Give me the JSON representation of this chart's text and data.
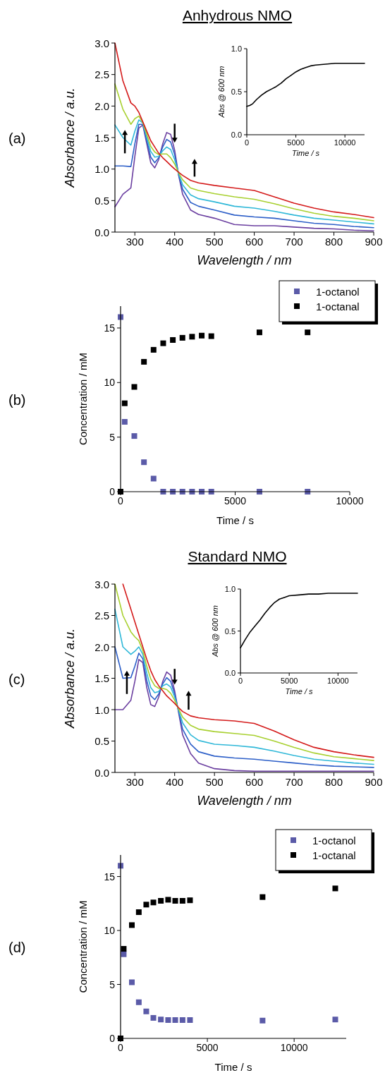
{
  "chart_data": [
    {
      "type": "line",
      "title": "Anhydrous NMO",
      "xlabel": "Wavelength / nm",
      "ylabel": "Absorbance / a.u.",
      "annotations": [
        "(a)"
      ],
      "xlim": [
        250,
        900
      ],
      "xticks": [
        300,
        400,
        500,
        600,
        700,
        800,
        900
      ],
      "ylim": [
        0,
        3
      ],
      "yticks": [
        {
          "value": 0,
          "label": "0.0"
        },
        0.5,
        {
          "value": 1,
          "label": "1.0"
        },
        1.5,
        {
          "value": 2,
          "label": "2.0"
        },
        2.5,
        {
          "value": 3,
          "label": "3.0"
        }
      ],
      "x": [
        250,
        270,
        290,
        300,
        310,
        320,
        330,
        340,
        350,
        360,
        370,
        380,
        390,
        400,
        410,
        420,
        440,
        460,
        500,
        550,
        600,
        650,
        700,
        750,
        800,
        850,
        900
      ],
      "series": [
        {
          "color": "#6b3fa0",
          "values": [
            0.4,
            0.6,
            0.7,
            1.2,
            1.65,
            1.7,
            1.4,
            1.1,
            1.02,
            1.15,
            1.4,
            1.58,
            1.55,
            1.3,
            0.9,
            0.6,
            0.35,
            0.28,
            0.22,
            0.12,
            0.1,
            0.1,
            0.08,
            0.06,
            0.05,
            0.03,
            0.02
          ]
        },
        {
          "color": "#2d5fc8",
          "values": [
            1.05,
            1.05,
            1.04,
            1.4,
            1.71,
            1.71,
            1.45,
            1.19,
            1.1,
            1.18,
            1.35,
            1.47,
            1.43,
            1.23,
            0.91,
            0.68,
            0.47,
            0.41,
            0.35,
            0.27,
            0.24,
            0.22,
            0.18,
            0.14,
            0.12,
            0.09,
            0.07
          ]
        },
        {
          "color": "#30b8d8",
          "values": [
            1.7,
            1.5,
            1.38,
            1.6,
            1.78,
            1.73,
            1.5,
            1.28,
            1.19,
            1.2,
            1.29,
            1.35,
            1.31,
            1.15,
            0.93,
            0.75,
            0.59,
            0.53,
            0.48,
            0.41,
            0.38,
            0.33,
            0.27,
            0.22,
            0.19,
            0.16,
            0.13
          ]
        },
        {
          "color": "#a8d030",
          "values": [
            2.35,
            1.95,
            1.71,
            1.8,
            1.84,
            1.74,
            1.55,
            1.36,
            1.27,
            1.23,
            1.24,
            1.24,
            1.18,
            1.08,
            0.94,
            0.83,
            0.7,
            0.66,
            0.61,
            0.56,
            0.52,
            0.45,
            0.37,
            0.3,
            0.25,
            0.22,
            0.18
          ]
        },
        {
          "color": "#d41a1a",
          "values": [
            3.0,
            2.4,
            2.05,
            2.0,
            1.9,
            1.75,
            1.6,
            1.45,
            1.35,
            1.25,
            1.18,
            1.12,
            1.06,
            1.0,
            0.95,
            0.9,
            0.82,
            0.78,
            0.74,
            0.7,
            0.66,
            0.56,
            0.46,
            0.38,
            0.32,
            0.28,
            0.23
          ]
        }
      ]
    },
    {
      "type": "line",
      "xlabel": "Time / s",
      "ylabel": "Abs @ 600 nm",
      "xlim": [
        0,
        12000
      ],
      "xticks": [
        0,
        5000,
        10000
      ],
      "ylim": [
        0,
        1
      ],
      "yticks": [
        {
          "value": 0,
          "label": "0.0"
        },
        0.5,
        {
          "value": 1,
          "label": "1.0"
        }
      ],
      "x": [
        0,
        300,
        600,
        1000,
        1500,
        2000,
        2500,
        3000,
        3500,
        4000,
        4500,
        5000,
        5500,
        6000,
        6500,
        7000,
        8000,
        9000,
        10000,
        12000
      ],
      "series": [
        {
          "color": "#000000",
          "values": [
            0.33,
            0.34,
            0.36,
            0.41,
            0.46,
            0.5,
            0.53,
            0.56,
            0.6,
            0.65,
            0.69,
            0.73,
            0.76,
            0.78,
            0.8,
            0.81,
            0.82,
            0.83,
            0.83,
            0.83
          ]
        }
      ]
    },
    {
      "type": "scatter",
      "xlabel": "Time / s",
      "ylabel": "Concentration / mM",
      "annotations": [
        "(b)"
      ],
      "xlim": [
        0,
        10000
      ],
      "xticks": [
        0,
        5000,
        10000
      ],
      "ylim": [
        0,
        17
      ],
      "yticks": [
        0,
        5,
        10,
        15
      ],
      "marker": "square",
      "legend": "top right",
      "x": [
        0,
        180,
        600,
        1020,
        1440,
        1860,
        2280,
        2700,
        3120,
        3540,
        3960,
        6060,
        8160
      ],
      "series": [
        {
          "name": "1-octanol",
          "color": "#5b5ba8",
          "values": [
            16,
            6.4,
            5.1,
            2.7,
            1.2,
            0,
            0,
            0,
            0,
            0,
            0,
            0,
            0
          ]
        },
        {
          "name": "1-octanal",
          "color": "#000000",
          "values": [
            0,
            8.1,
            9.6,
            11.9,
            13,
            13.6,
            13.9,
            14.1,
            14.2,
            14.3,
            14.25,
            14.6,
            14.6
          ]
        }
      ]
    },
    {
      "type": "line",
      "title": "Standard NMO",
      "xlabel": "Wavelength / nm",
      "ylabel": "Absorbance / a.u.",
      "annotations": [
        "(c)"
      ],
      "xlim": [
        250,
        900
      ],
      "xticks": [
        300,
        400,
        500,
        600,
        700,
        800,
        900
      ],
      "ylim": [
        0,
        3
      ],
      "yticks": [
        {
          "value": 0,
          "label": "0.0"
        },
        0.5,
        {
          "value": 1,
          "label": "1.0"
        },
        1.5,
        {
          "value": 2,
          "label": "2.0"
        },
        2.5,
        {
          "value": 3,
          "label": "3.0"
        }
      ],
      "x": [
        250,
        270,
        290,
        300,
        310,
        320,
        330,
        340,
        350,
        360,
        370,
        380,
        390,
        400,
        410,
        420,
        440,
        460,
        500,
        550,
        600,
        650,
        700,
        750,
        800,
        850,
        900
      ],
      "series": [
        {
          "color": "#6b3fa0",
          "values": [
            1.0,
            1.0,
            1.15,
            1.45,
            1.8,
            1.75,
            1.35,
            1.08,
            1.05,
            1.2,
            1.45,
            1.6,
            1.55,
            1.3,
            0.95,
            0.6,
            0.3,
            0.15,
            0.06,
            0.03,
            0.02,
            0.02,
            0.02,
            0.02,
            0.02,
            0.02,
            0.02
          ]
        },
        {
          "color": "#2d5fc8",
          "values": [
            2.0,
            1.5,
            1.51,
            1.69,
            1.9,
            1.81,
            1.46,
            1.22,
            1.16,
            1.25,
            1.41,
            1.51,
            1.45,
            1.25,
            0.97,
            0.69,
            0.45,
            0.33,
            0.26,
            0.23,
            0.21,
            0.18,
            0.15,
            0.12,
            0.1,
            0.09,
            0.08
          ]
        },
        {
          "color": "#30b8d8",
          "values": [
            2.6,
            2.0,
            1.88,
            1.93,
            2.0,
            1.88,
            1.58,
            1.35,
            1.27,
            1.29,
            1.38,
            1.41,
            1.36,
            1.2,
            0.99,
            0.79,
            0.6,
            0.51,
            0.45,
            0.43,
            0.4,
            0.34,
            0.27,
            0.21,
            0.18,
            0.15,
            0.13
          ]
        },
        {
          "color": "#a8d030",
          "values": [
            3.0,
            2.5,
            2.24,
            2.16,
            2.1,
            1.94,
            1.69,
            1.49,
            1.38,
            1.34,
            1.34,
            1.32,
            1.26,
            1.15,
            1.01,
            0.88,
            0.75,
            0.69,
            0.65,
            0.62,
            0.59,
            0.5,
            0.4,
            0.31,
            0.25,
            0.22,
            0.19
          ]
        },
        {
          "color": "#d41a1a",
          "values": [
            null,
            3.0,
            2.6,
            2.4,
            2.2,
            2.0,
            1.8,
            1.62,
            1.48,
            1.38,
            1.3,
            1.22,
            1.16,
            1.1,
            1.03,
            0.97,
            0.9,
            0.87,
            0.84,
            0.82,
            0.78,
            0.66,
            0.52,
            0.4,
            0.33,
            0.28,
            0.24
          ]
        }
      ]
    },
    {
      "type": "line",
      "xlabel": "Time / s",
      "ylabel": "Abs @ 600 nm",
      "xlim": [
        0,
        12000
      ],
      "xticks": [
        0,
        5000,
        10000
      ],
      "ylim": [
        0,
        1
      ],
      "yticks": [
        {
          "value": 0,
          "label": "0.0"
        },
        0.5,
        {
          "value": 1,
          "label": "1.0"
        }
      ],
      "x": [
        0,
        500,
        1000,
        1500,
        2000,
        2500,
        3000,
        3500,
        4000,
        4500,
        5000,
        6000,
        7000,
        8000,
        9000,
        10000,
        11000,
        12000
      ],
      "series": [
        {
          "color": "#000000",
          "values": [
            0.3,
            0.4,
            0.49,
            0.56,
            0.63,
            0.71,
            0.78,
            0.84,
            0.88,
            0.9,
            0.92,
            0.93,
            0.94,
            0.94,
            0.95,
            0.95,
            0.95,
            0.95
          ]
        }
      ]
    },
    {
      "type": "scatter",
      "xlabel": "Time / s",
      "ylabel": "Concentration / mM",
      "annotations": [
        "(d)"
      ],
      "xlim": [
        0,
        13000
      ],
      "xticks": [
        0,
        5000,
        10000
      ],
      "ylim": [
        0,
        17
      ],
      "yticks": [
        0,
        5,
        10,
        15
      ],
      "marker": "square",
      "legend": "top right",
      "x": [
        0,
        180,
        650,
        1050,
        1480,
        1890,
        2320,
        2740,
        3150,
        3570,
        4000,
        8180,
        12370
      ],
      "series": [
        {
          "name": "1-octanol",
          "color": "#5b5ba8",
          "values": [
            16,
            7.8,
            5.2,
            3.35,
            2.5,
            1.9,
            1.75,
            1.7,
            1.7,
            1.7,
            1.7,
            1.65,
            1.75
          ]
        },
        {
          "name": "1-octanal",
          "color": "#000000",
          "values": [
            0,
            8.3,
            10.5,
            11.7,
            12.4,
            12.6,
            12.75,
            12.85,
            12.75,
            12.75,
            12.8,
            13.1,
            13.9
          ]
        }
      ]
    }
  ]
}
